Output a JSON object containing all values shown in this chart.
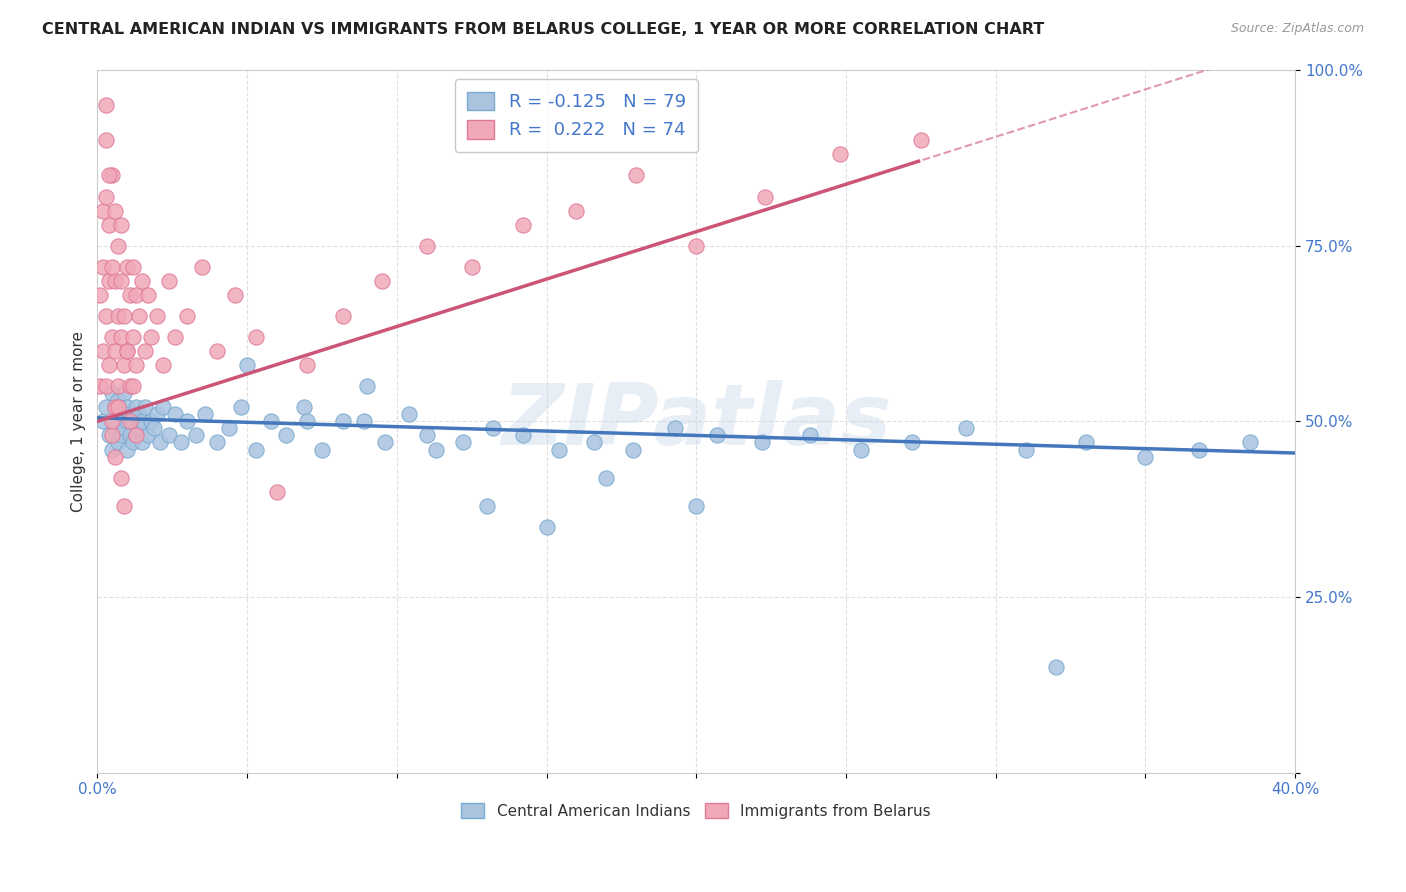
{
  "title": "CENTRAL AMERICAN INDIAN VS IMMIGRANTS FROM BELARUS COLLEGE, 1 YEAR OR MORE CORRELATION CHART",
  "source": "Source: ZipAtlas.com",
  "ylabel": "College, 1 year or more",
  "xlim": [
    0.0,
    0.4
  ],
  "ylim": [
    0.0,
    1.0
  ],
  "blue_fill": "#aac4e0",
  "blue_edge": "#7aaad0",
  "pink_fill": "#f0a8b8",
  "pink_edge": "#e07898",
  "blue_line": "#4477bb",
  "pink_line": "#cc5577",
  "grid_color": "#e0e0e0",
  "watermark": "ZIPatlas",
  "tick_color": "#4477cc",
  "r1": "-0.125",
  "n1": "79",
  "r2": "0.222",
  "n2": "74",
  "blue_x": [
    0.002,
    0.003,
    0.004,
    0.005,
    0.005,
    0.006,
    0.006,
    0.007,
    0.007,
    0.008,
    0.008,
    0.009,
    0.009,
    0.01,
    0.01,
    0.01,
    0.011,
    0.011,
    0.012,
    0.012,
    0.013,
    0.013,
    0.014,
    0.014,
    0.015,
    0.015,
    0.016,
    0.017,
    0.018,
    0.019,
    0.02,
    0.021,
    0.022,
    0.024,
    0.026,
    0.028,
    0.03,
    0.033,
    0.036,
    0.04,
    0.044,
    0.048,
    0.053,
    0.058,
    0.063,
    0.069,
    0.075,
    0.082,
    0.089,
    0.096,
    0.104,
    0.113,
    0.122,
    0.132,
    0.142,
    0.154,
    0.166,
    0.179,
    0.193,
    0.207,
    0.222,
    0.238,
    0.255,
    0.272,
    0.29,
    0.31,
    0.33,
    0.35,
    0.368,
    0.385,
    0.05,
    0.07,
    0.09,
    0.11,
    0.13,
    0.15,
    0.17,
    0.2,
    0.32
  ],
  "blue_y": [
    0.5,
    0.52,
    0.48,
    0.54,
    0.46,
    0.5,
    0.52,
    0.47,
    0.53,
    0.48,
    0.51,
    0.49,
    0.54,
    0.46,
    0.5,
    0.52,
    0.48,
    0.51,
    0.47,
    0.5,
    0.52,
    0.48,
    0.49,
    0.51,
    0.47,
    0.5,
    0.52,
    0.48,
    0.5,
    0.49,
    0.51,
    0.47,
    0.52,
    0.48,
    0.51,
    0.47,
    0.5,
    0.48,
    0.51,
    0.47,
    0.49,
    0.52,
    0.46,
    0.5,
    0.48,
    0.52,
    0.46,
    0.5,
    0.5,
    0.47,
    0.51,
    0.46,
    0.47,
    0.49,
    0.48,
    0.46,
    0.47,
    0.46,
    0.49,
    0.48,
    0.47,
    0.48,
    0.46,
    0.47,
    0.49,
    0.46,
    0.47,
    0.45,
    0.46,
    0.47,
    0.58,
    0.5,
    0.55,
    0.48,
    0.38,
    0.35,
    0.42,
    0.38,
    0.15
  ],
  "pink_x": [
    0.001,
    0.001,
    0.002,
    0.002,
    0.002,
    0.003,
    0.003,
    0.003,
    0.003,
    0.004,
    0.004,
    0.004,
    0.005,
    0.005,
    0.005,
    0.005,
    0.006,
    0.006,
    0.006,
    0.006,
    0.007,
    0.007,
    0.007,
    0.008,
    0.008,
    0.008,
    0.009,
    0.009,
    0.01,
    0.01,
    0.011,
    0.011,
    0.012,
    0.012,
    0.013,
    0.013,
    0.014,
    0.015,
    0.016,
    0.017,
    0.018,
    0.02,
    0.022,
    0.024,
    0.026,
    0.03,
    0.035,
    0.04,
    0.046,
    0.053,
    0.06,
    0.07,
    0.082,
    0.095,
    0.11,
    0.125,
    0.142,
    0.16,
    0.18,
    0.2,
    0.223,
    0.248,
    0.275,
    0.003,
    0.004,
    0.005,
    0.006,
    0.007,
    0.008,
    0.009,
    0.01,
    0.011,
    0.012,
    0.013
  ],
  "pink_y": [
    0.55,
    0.68,
    0.72,
    0.6,
    0.8,
    0.65,
    0.82,
    0.55,
    0.9,
    0.7,
    0.78,
    0.58,
    0.72,
    0.62,
    0.85,
    0.48,
    0.7,
    0.6,
    0.8,
    0.52,
    0.75,
    0.65,
    0.55,
    0.7,
    0.62,
    0.78,
    0.65,
    0.58,
    0.72,
    0.6,
    0.68,
    0.55,
    0.72,
    0.62,
    0.68,
    0.58,
    0.65,
    0.7,
    0.6,
    0.68,
    0.62,
    0.65,
    0.58,
    0.7,
    0.62,
    0.65,
    0.72,
    0.6,
    0.68,
    0.62,
    0.4,
    0.58,
    0.65,
    0.7,
    0.75,
    0.72,
    0.78,
    0.8,
    0.85,
    0.75,
    0.82,
    0.88,
    0.9,
    0.95,
    0.85,
    0.5,
    0.45,
    0.52,
    0.42,
    0.38,
    0.6,
    0.5,
    0.55,
    0.48
  ]
}
